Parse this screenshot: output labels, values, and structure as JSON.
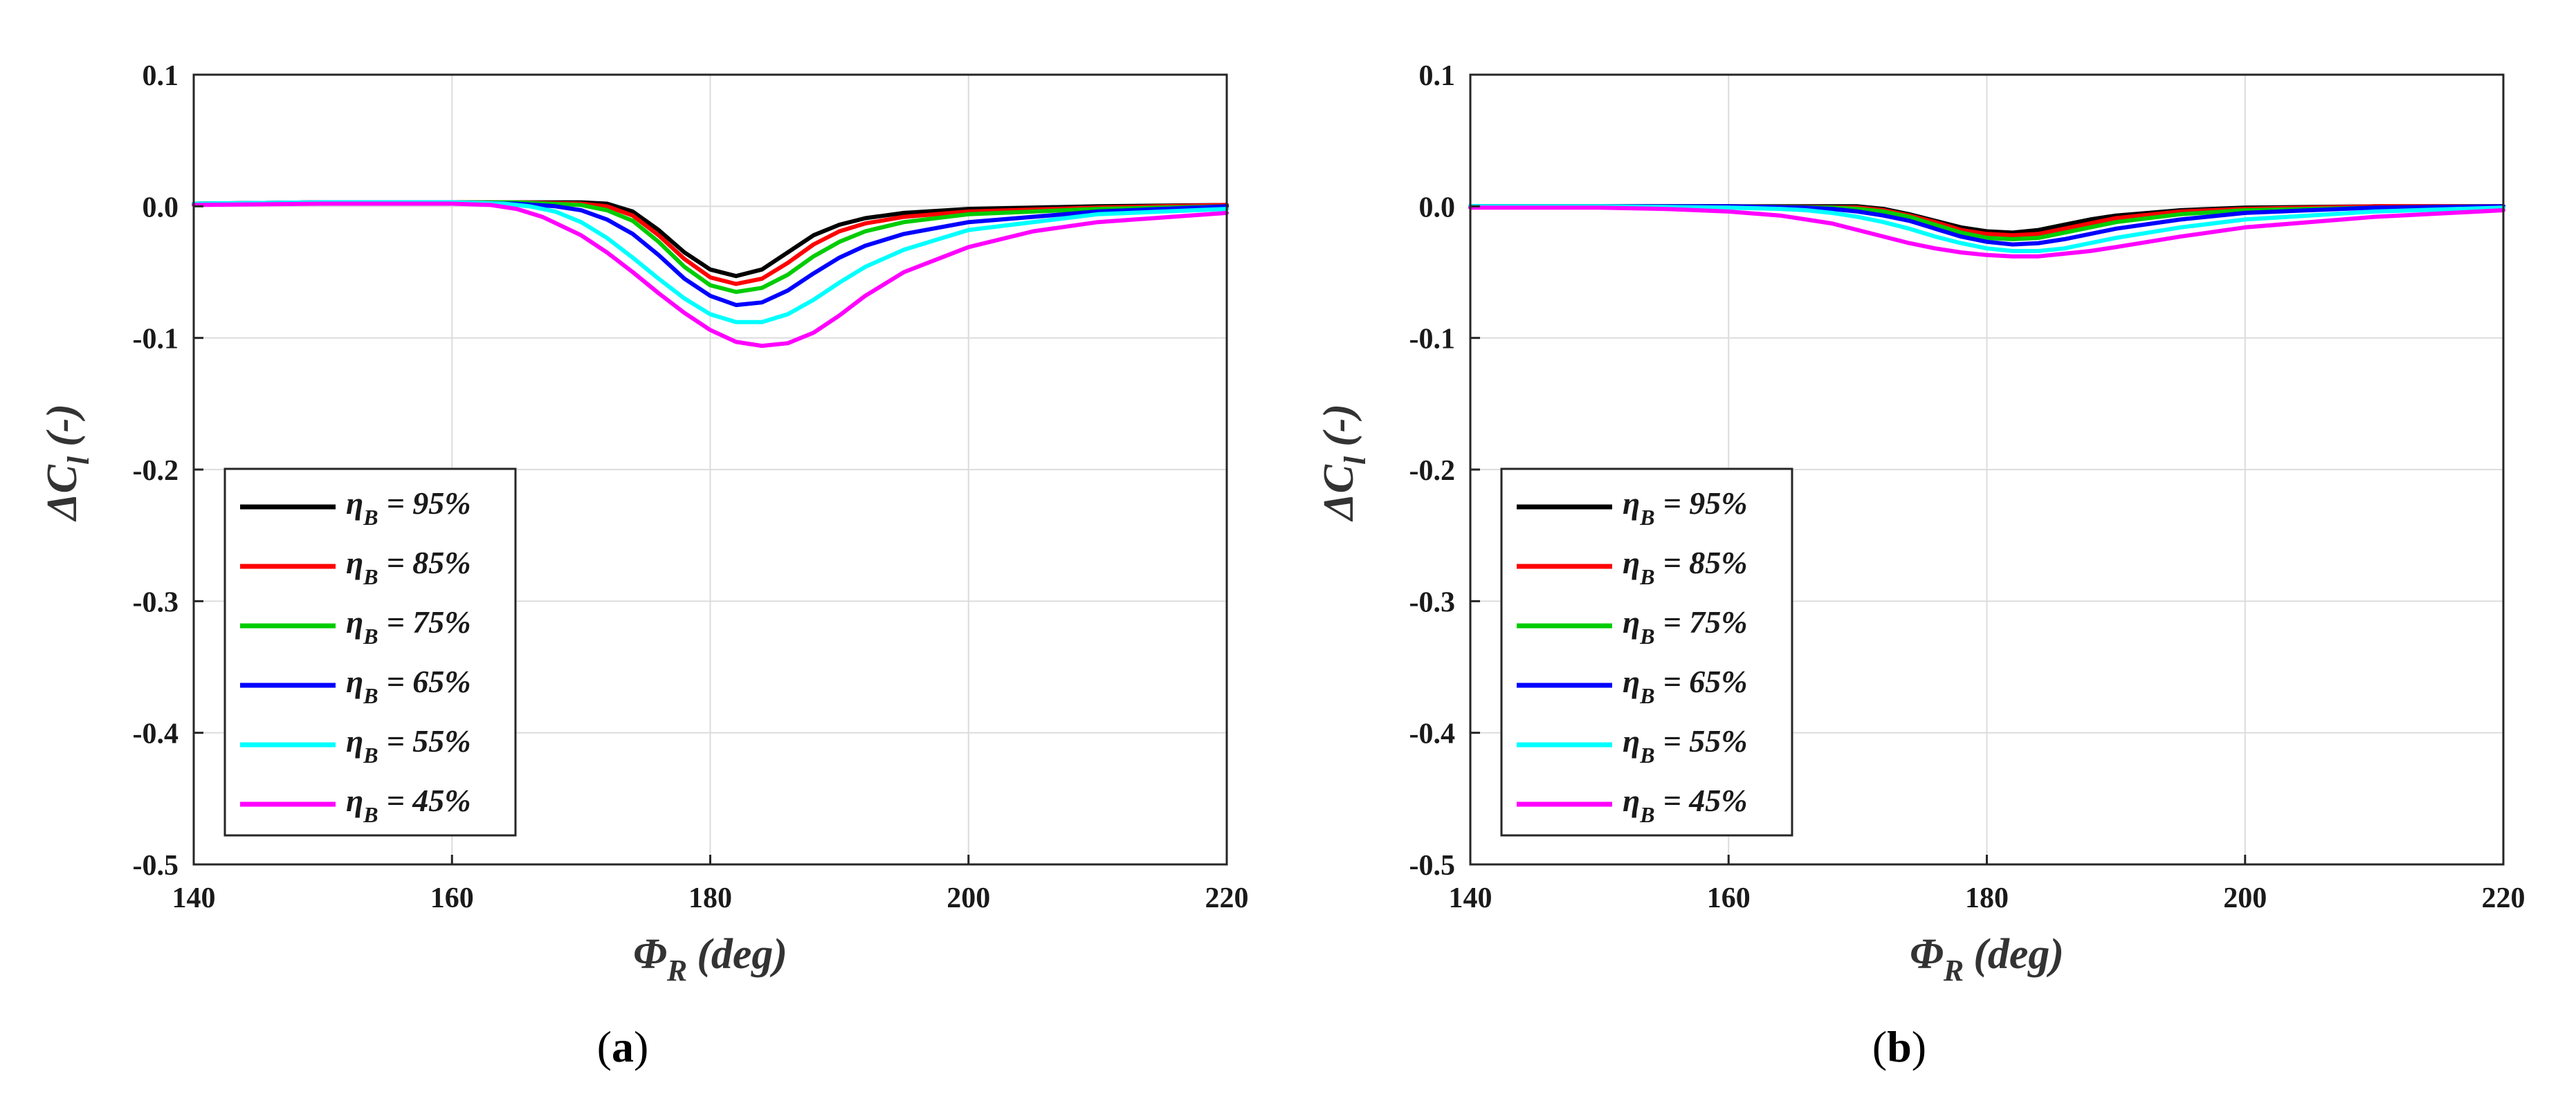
{
  "chart_data": [
    {
      "type": "line",
      "panel_label": "a",
      "xlabel": {
        "symbol": "Φ",
        "sub": "R",
        "unit": "(deg)"
      },
      "ylabel": {
        "symbol": "ΔC",
        "sub": "l",
        "unit": "(-)"
      },
      "xlim": [
        140,
        220
      ],
      "ylim": [
        -0.5,
        0.1
      ],
      "xticks": [
        "140",
        "160",
        "180",
        "200",
        "220"
      ],
      "yticks": [
        "0.1",
        "0.0",
        "-0.1",
        "-0.2",
        "-0.3",
        "-0.4",
        "-0.5"
      ],
      "grid": true,
      "legend_position": "bottom-left",
      "series": [
        {
          "name": "η_B = 95%",
          "legend": {
            "symbol": "η",
            "sub": "B",
            "text": "= 95%"
          },
          "color": "#000000",
          "x": [
            140,
            150,
            160,
            165,
            170,
            172,
            174,
            176,
            178,
            180,
            182,
            184,
            186,
            188,
            190,
            192,
            195,
            200,
            210,
            220
          ],
          "y": [
            0.002,
            0.003,
            0.003,
            0.003,
            0.003,
            0.002,
            -0.004,
            -0.018,
            -0.035,
            -0.048,
            -0.053,
            -0.048,
            -0.035,
            -0.022,
            -0.014,
            -0.009,
            -0.005,
            -0.002,
            0.0,
            0.001
          ]
        },
        {
          "name": "η_B = 85%",
          "legend": {
            "symbol": "η",
            "sub": "B",
            "text": "= 85%"
          },
          "color": "#ff0000",
          "x": [
            140,
            150,
            160,
            165,
            170,
            172,
            174,
            176,
            178,
            180,
            182,
            184,
            186,
            188,
            190,
            192,
            195,
            200,
            210,
            220
          ],
          "y": [
            0.002,
            0.003,
            0.003,
            0.003,
            0.002,
            0.0,
            -0.007,
            -0.022,
            -0.04,
            -0.054,
            -0.059,
            -0.055,
            -0.043,
            -0.029,
            -0.019,
            -0.013,
            -0.008,
            -0.004,
            -0.001,
            0.001
          ]
        },
        {
          "name": "η_B = 75%",
          "legend": {
            "symbol": "η",
            "sub": "B",
            "text": "= 75%"
          },
          "color": "#00cc00",
          "x": [
            140,
            150,
            160,
            165,
            170,
            172,
            174,
            176,
            178,
            180,
            182,
            184,
            186,
            188,
            190,
            192,
            195,
            200,
            210,
            220
          ],
          "y": [
            0.002,
            0.003,
            0.003,
            0.003,
            0.001,
            -0.003,
            -0.011,
            -0.027,
            -0.046,
            -0.06,
            -0.065,
            -0.062,
            -0.052,
            -0.038,
            -0.027,
            -0.019,
            -0.012,
            -0.006,
            -0.002,
            0.0
          ]
        },
        {
          "name": "η_B = 65%",
          "legend": {
            "symbol": "η",
            "sub": "B",
            "text": "= 65%"
          },
          "color": "#0000ff",
          "x": [
            140,
            150,
            160,
            165,
            168,
            170,
            172,
            174,
            176,
            178,
            180,
            182,
            184,
            186,
            188,
            190,
            192,
            195,
            200,
            210,
            220
          ],
          "y": [
            0.002,
            0.003,
            0.003,
            0.002,
            0.0,
            -0.003,
            -0.01,
            -0.021,
            -0.037,
            -0.055,
            -0.068,
            -0.075,
            -0.073,
            -0.064,
            -0.051,
            -0.039,
            -0.03,
            -0.021,
            -0.012,
            -0.004,
            0.0
          ]
        },
        {
          "name": "η_B = 55%",
          "legend": {
            "symbol": "η",
            "sub": "B",
            "text": "= 55%"
          },
          "color": "#00ffff",
          "x": [
            140,
            150,
            160,
            164,
            166,
            168,
            170,
            172,
            174,
            176,
            178,
            180,
            182,
            184,
            186,
            188,
            190,
            192,
            195,
            200,
            210,
            220
          ],
          "y": [
            0.002,
            0.003,
            0.003,
            0.002,
            0.0,
            -0.004,
            -0.012,
            -0.024,
            -0.039,
            -0.055,
            -0.07,
            -0.082,
            -0.088,
            -0.088,
            -0.082,
            -0.071,
            -0.058,
            -0.046,
            -0.033,
            -0.018,
            -0.006,
            -0.002
          ]
        },
        {
          "name": "η_B = 45%",
          "legend": {
            "symbol": "η",
            "sub": "B",
            "text": "= 45%"
          },
          "color": "#ff00ff",
          "x": [
            140,
            150,
            160,
            163,
            165,
            167,
            170,
            172,
            174,
            176,
            178,
            180,
            182,
            184,
            186,
            188,
            190,
            192,
            195,
            200,
            205,
            210,
            220
          ],
          "y": [
            0.001,
            0.002,
            0.002,
            0.001,
            -0.002,
            -0.008,
            -0.022,
            -0.035,
            -0.05,
            -0.066,
            -0.081,
            -0.094,
            -0.103,
            -0.106,
            -0.104,
            -0.096,
            -0.083,
            -0.068,
            -0.05,
            -0.031,
            -0.019,
            -0.012,
            -0.005
          ]
        }
      ]
    },
    {
      "type": "line",
      "panel_label": "b",
      "xlabel": {
        "symbol": "Φ",
        "sub": "R",
        "unit": "(deg)"
      },
      "ylabel": {
        "symbol": "ΔC",
        "sub": "l",
        "unit": "(-)"
      },
      "xlim": [
        140,
        220
      ],
      "ylim": [
        -0.5,
        0.1
      ],
      "xticks": [
        "140",
        "160",
        "180",
        "200",
        "220"
      ],
      "yticks": [
        "0.1",
        "0.0",
        "-0.1",
        "-0.2",
        "-0.3",
        "-0.4",
        "-0.5"
      ],
      "grid": true,
      "legend_position": "bottom-left",
      "series": [
        {
          "name": "η_B = 95%",
          "legend": {
            "symbol": "η",
            "sub": "B",
            "text": "= 95%"
          },
          "color": "#000000",
          "x": [
            140,
            150,
            160,
            170,
            172,
            174,
            176,
            178,
            180,
            182,
            184,
            186,
            188,
            190,
            195,
            200,
            210,
            220
          ],
          "y": [
            0.0,
            0.0,
            0.0,
            0.0,
            -0.002,
            -0.006,
            -0.011,
            -0.016,
            -0.019,
            -0.02,
            -0.018,
            -0.014,
            -0.01,
            -0.007,
            -0.003,
            -0.001,
            0.0,
            0.0
          ]
        },
        {
          "name": "η_B = 85%",
          "legend": {
            "symbol": "η",
            "sub": "B",
            "text": "= 85%"
          },
          "color": "#ff0000",
          "x": [
            140,
            150,
            160,
            170,
            172,
            174,
            176,
            178,
            180,
            182,
            184,
            186,
            188,
            190,
            195,
            200,
            210,
            220
          ],
          "y": [
            0.0,
            0.0,
            0.0,
            -0.001,
            -0.003,
            -0.007,
            -0.012,
            -0.018,
            -0.021,
            -0.022,
            -0.021,
            -0.017,
            -0.013,
            -0.009,
            -0.004,
            -0.002,
            0.0,
            0.0
          ]
        },
        {
          "name": "η_B = 75%",
          "legend": {
            "symbol": "η",
            "sub": "B",
            "text": "= 75%"
          },
          "color": "#00cc00",
          "x": [
            140,
            150,
            160,
            168,
            170,
            172,
            174,
            176,
            178,
            180,
            182,
            184,
            186,
            188,
            190,
            195,
            200,
            210,
            220
          ],
          "y": [
            0.0,
            0.0,
            0.0,
            -0.001,
            -0.002,
            -0.004,
            -0.008,
            -0.014,
            -0.02,
            -0.024,
            -0.025,
            -0.024,
            -0.02,
            -0.016,
            -0.012,
            -0.006,
            -0.003,
            -0.001,
            0.0
          ]
        },
        {
          "name": "η_B = 65%",
          "legend": {
            "symbol": "η",
            "sub": "B",
            "text": "= 65%"
          },
          "color": "#0000ff",
          "x": [
            140,
            150,
            160,
            166,
            168,
            170,
            172,
            174,
            176,
            178,
            180,
            182,
            184,
            186,
            188,
            190,
            195,
            200,
            210,
            220
          ],
          "y": [
            0.0,
            0.0,
            0.0,
            -0.001,
            -0.002,
            -0.004,
            -0.007,
            -0.011,
            -0.017,
            -0.023,
            -0.027,
            -0.029,
            -0.028,
            -0.025,
            -0.021,
            -0.017,
            -0.01,
            -0.005,
            -0.001,
            0.0
          ]
        },
        {
          "name": "η_B = 55%",
          "legend": {
            "symbol": "η",
            "sub": "B",
            "text": "= 55%"
          },
          "color": "#00ffff",
          "x": [
            140,
            150,
            160,
            164,
            166,
            168,
            170,
            172,
            174,
            176,
            178,
            180,
            182,
            184,
            186,
            188,
            190,
            195,
            200,
            210,
            220
          ],
          "y": [
            0.0,
            0.0,
            -0.001,
            -0.002,
            -0.003,
            -0.005,
            -0.008,
            -0.012,
            -0.017,
            -0.023,
            -0.028,
            -0.032,
            -0.034,
            -0.034,
            -0.032,
            -0.028,
            -0.024,
            -0.016,
            -0.01,
            -0.004,
            -0.001
          ]
        },
        {
          "name": "η_B = 45%",
          "legend": {
            "symbol": "η",
            "sub": "B",
            "text": "= 45%"
          },
          "color": "#ff00ff",
          "x": [
            140,
            150,
            155,
            160,
            164,
            166,
            168,
            170,
            172,
            174,
            176,
            178,
            180,
            182,
            184,
            186,
            188,
            190,
            195,
            200,
            210,
            220
          ],
          "y": [
            -0.001,
            -0.001,
            -0.002,
            -0.004,
            -0.007,
            -0.01,
            -0.013,
            -0.018,
            -0.023,
            -0.028,
            -0.032,
            -0.035,
            -0.037,
            -0.038,
            -0.038,
            -0.036,
            -0.034,
            -0.031,
            -0.023,
            -0.016,
            -0.008,
            -0.003
          ]
        }
      ]
    }
  ]
}
